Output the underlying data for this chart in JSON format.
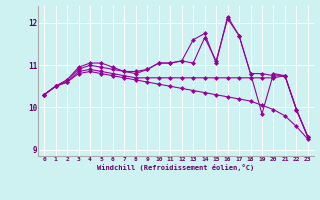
{
  "xlabel": "Windchill (Refroidissement éolien,°C)",
  "background_color": "#cef2f2",
  "line_color": "#990099",
  "xlim": [
    -0.5,
    23.5
  ],
  "ylim": [
    8.85,
    12.4
  ],
  "yticks": [
    9,
    10,
    11,
    12
  ],
  "xticks": [
    0,
    1,
    2,
    3,
    4,
    5,
    6,
    7,
    8,
    9,
    10,
    11,
    12,
    13,
    14,
    15,
    16,
    17,
    18,
    19,
    20,
    21,
    22,
    23
  ],
  "series": [
    [
      10.3,
      10.5,
      10.6,
      10.8,
      10.85,
      10.8,
      10.75,
      10.7,
      10.65,
      10.6,
      10.55,
      10.5,
      10.45,
      10.4,
      10.35,
      10.3,
      10.25,
      10.2,
      10.15,
      10.05,
      9.95,
      9.8,
      9.55,
      9.25
    ],
    [
      10.3,
      10.5,
      10.6,
      10.85,
      10.9,
      10.85,
      10.8,
      10.75,
      10.7,
      10.7,
      10.7,
      10.7,
      10.7,
      10.7,
      10.7,
      10.7,
      10.7,
      10.7,
      10.7,
      10.7,
      10.7,
      10.75,
      9.95,
      9.3
    ],
    [
      10.3,
      10.5,
      10.65,
      10.9,
      11.0,
      10.95,
      10.9,
      10.85,
      10.8,
      10.9,
      11.05,
      11.05,
      11.1,
      11.05,
      11.65,
      11.1,
      12.1,
      11.7,
      10.8,
      10.8,
      10.75,
      10.75,
      9.95,
      9.3
    ],
    [
      10.3,
      10.5,
      10.65,
      10.95,
      11.05,
      11.05,
      10.95,
      10.85,
      10.85,
      10.9,
      11.05,
      11.05,
      11.1,
      11.6,
      11.75,
      11.05,
      12.15,
      11.7,
      10.8,
      9.85,
      10.8,
      10.75,
      9.95,
      9.3
    ]
  ]
}
